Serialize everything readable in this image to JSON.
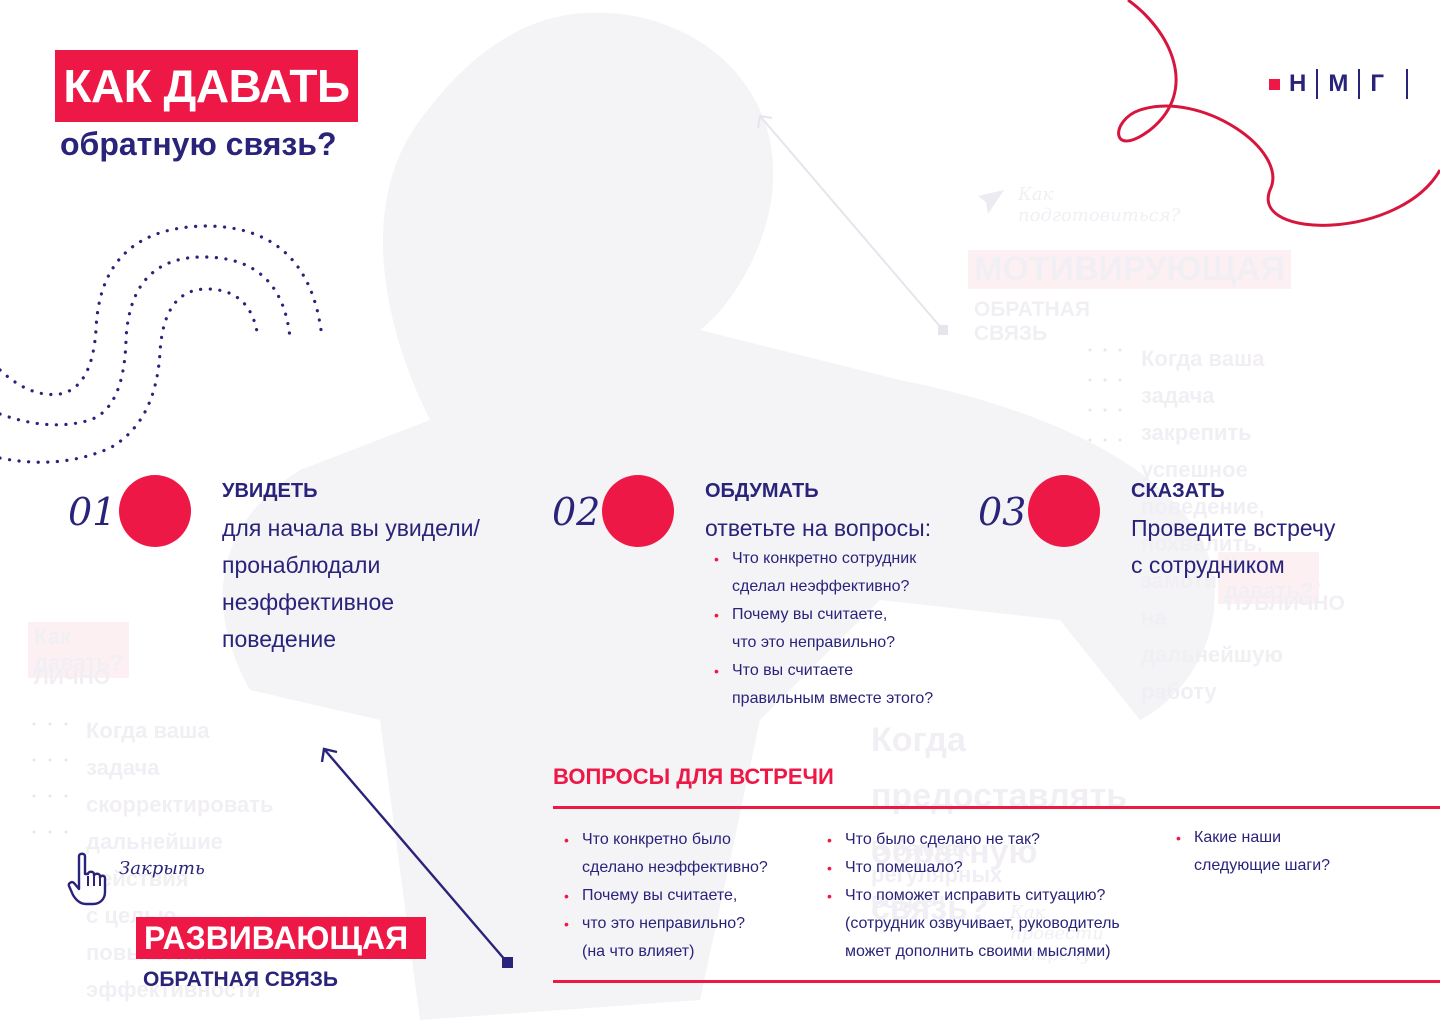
{
  "header": {
    "title": "КАК ДАВАТЬ",
    "subtitle": "обратную связь?"
  },
  "logo": {
    "letters": [
      "Н",
      "М",
      "Г"
    ]
  },
  "steps": [
    {
      "number": "01",
      "heading": "УВИДЕТЬ",
      "text_lines": [
        "для начала вы увидели/",
        "пронаблюдали",
        "неэффективное",
        "поведение"
      ]
    },
    {
      "number": "02",
      "heading": "ОБДУМАТЬ",
      "intro": "ответьте на вопросы:",
      "bullets": [
        [
          "Что конкретно сотрудник",
          "сделал неэффективно?"
        ],
        [
          "Почему вы считаете,",
          "что это неправильно?"
        ],
        [
          "Что вы считаете",
          "правильным вместе этого?"
        ]
      ]
    },
    {
      "number": "03",
      "heading": "СКАЗАТЬ",
      "text_lines": [
        "Проведите встречу",
        "с сотрудником"
      ]
    }
  ],
  "meeting_questions": {
    "title": "ВОПРОСЫ ДЛЯ ВСТРЕЧИ",
    "col1": [
      {
        "bullet": true,
        "text": "Что конкретно было"
      },
      {
        "bullet": false,
        "text": "сделано неэффективно?"
      },
      {
        "bullet": true,
        "text": "Почему вы считаете,"
      },
      {
        "bullet": true,
        "text": "что это неправильно?"
      },
      {
        "bullet": false,
        "text": "(на что влияет)"
      }
    ],
    "col2": [
      {
        "bullet": true,
        "text": "Что было сделано не так?"
      },
      {
        "bullet": true,
        "text": "Что помешало?"
      },
      {
        "bullet": true,
        "text": "Что поможет исправить ситуацию?"
      },
      {
        "bullet": false,
        "text": "(сотрудник озвучивает, руководитель"
      },
      {
        "bullet": false,
        "text": "может дополнить своими мыслями)"
      }
    ],
    "col3": [
      {
        "bullet": true,
        "text": "Какие наши"
      },
      {
        "bullet": false,
        "text": "следующие шаги?"
      }
    ]
  },
  "close": {
    "label": "Закрыть"
  },
  "developing": {
    "title": "РАЗВИВАЮЩАЯ",
    "subtitle": "ОБРАТНАЯ СВЯЗЬ"
  },
  "background": {
    "prepare": "Как подготовиться?",
    "motivating_title": "МОТИВИРУЮЩАЯ",
    "motivating_sub": "ОБРАТНАЯ СВЯЗЬ",
    "motivating_lines": [
      "Когда ваша задача",
      "закрепить успешное",
      "поведение, похвалить,",
      "замотивировать на",
      "дальнейшую работу"
    ],
    "public_tag": "Как давать?",
    "public_label": "ПУБЛИЧНО",
    "private_tag": "Как давать?",
    "private_label": "ЛИЧНО",
    "developing_lines": [
      "Когда ваша задача",
      "скорректировать",
      "дальнейшие действия",
      "с целью повышения",
      "эффективности"
    ],
    "when_lines": [
      "Когда предоставлять",
      "обратную связь?"
    ],
    "regular": "В рамках регулярных встреч",
    "how_meeting": "Как провести встречу?"
  },
  "colors": {
    "accent": "#ee1846",
    "primary": "#2a237a"
  }
}
